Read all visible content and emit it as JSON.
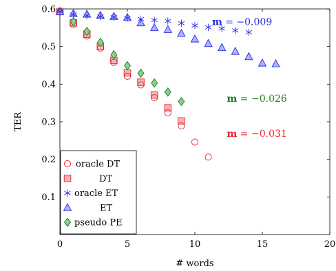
{
  "chart_data": {
    "type": "scatter",
    "xlabel": "# words",
    "ylabel": "TER",
    "xlim": [
      0,
      20
    ],
    "ylim": [
      0,
      0.6
    ],
    "xticks": [
      "0",
      "5",
      "10",
      "15",
      "20"
    ],
    "yticks": [
      "0.1",
      "0.2",
      "0.3",
      "0.4",
      "0.5",
      "0.6"
    ],
    "grid": false,
    "legend_position": "bottom-left",
    "series": [
      {
        "name": "oracle DT",
        "marker": "circle-open",
        "color": "#e8222a",
        "fill": "none",
        "x": [
          0,
          1,
          2,
          3,
          4,
          5,
          6,
          7,
          8,
          9,
          10,
          11
        ],
        "y": [
          0.593,
          0.559,
          0.528,
          0.496,
          0.458,
          0.421,
          0.398,
          0.364,
          0.324,
          0.289,
          0.246,
          0.206
        ]
      },
      {
        "name": "DT",
        "marker": "square",
        "color": "#e8222a",
        "fill": "#f6b3b6",
        "x": [
          0,
          1,
          2,
          3,
          4,
          5,
          6,
          7,
          8,
          9
        ],
        "y": [
          0.593,
          0.563,
          0.533,
          0.5,
          0.463,
          0.43,
          0.405,
          0.371,
          0.337,
          0.302
        ]
      },
      {
        "name": "oracle ET",
        "marker": "star",
        "color": "#2a2ae0",
        "fill": "none",
        "x": [
          0,
          1,
          2,
          3,
          4,
          5,
          6,
          7,
          8,
          9,
          10,
          11,
          12,
          13,
          14
        ],
        "y": [
          0.593,
          0.585,
          0.582,
          0.58,
          0.578,
          0.576,
          0.573,
          0.57,
          0.568,
          0.562,
          0.556,
          0.551,
          0.548,
          0.543,
          0.538
        ]
      },
      {
        "name": "ET",
        "marker": "triangle",
        "color": "#2a2ae0",
        "fill": "#aab4ff",
        "x": [
          0,
          1,
          2,
          3,
          4,
          5,
          6,
          7,
          8,
          9,
          10,
          11,
          12,
          13,
          14,
          15,
          16
        ],
        "y": [
          0.593,
          0.588,
          0.586,
          0.583,
          0.58,
          0.577,
          0.563,
          0.55,
          0.545,
          0.535,
          0.52,
          0.508,
          0.497,
          0.487,
          0.473,
          0.456,
          0.454
        ]
      },
      {
        "name": "pseudo PE",
        "marker": "diamond",
        "color": "#1f7a1f",
        "fill": "#8ccf8c",
        "x": [
          0,
          1,
          2,
          3,
          4,
          5,
          6,
          7,
          8,
          9
        ],
        "y": [
          0.593,
          0.566,
          0.54,
          0.511,
          0.478,
          0.449,
          0.429,
          0.403,
          0.379,
          0.354
        ]
      }
    ],
    "annotations": [
      {
        "prefix": "m",
        "text": " = −0.009",
        "x": 13.5,
        "y": 0.566,
        "color": "#2a2ae0"
      },
      {
        "prefix": "m",
        "text": " = −0.026",
        "x": 14.6,
        "y": 0.362,
        "color": "#1f7a1f"
      },
      {
        "prefix": "m",
        "text": " = −0.031",
        "x": 14.6,
        "y": 0.269,
        "color": "#e8222a"
      }
    ]
  }
}
